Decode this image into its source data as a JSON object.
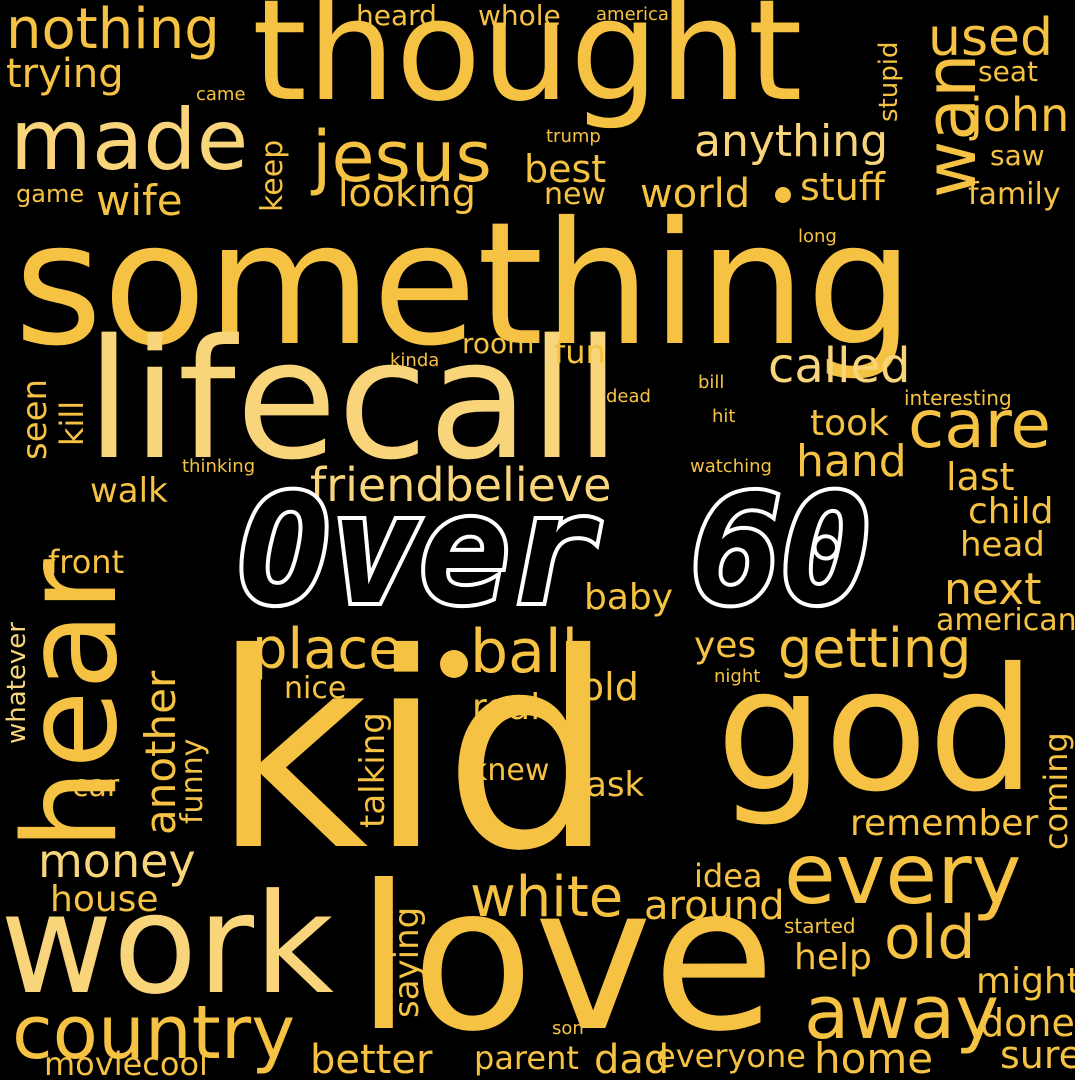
{
  "colors": {
    "background": "#000000",
    "primary": "#f5c243",
    "light": "#f8d57a",
    "title_fill": "#000000",
    "title_stroke": "#ffffff"
  },
  "title": "Over 60",
  "words": [
    {
      "text": "something",
      "tone": "primary"
    },
    {
      "text": "kid",
      "tone": "primary"
    },
    {
      "text": "lifecall",
      "tone": "light"
    },
    {
      "text": "thought",
      "tone": "primary"
    },
    {
      "text": "love",
      "tone": "primary"
    },
    {
      "text": "god",
      "tone": "primary"
    },
    {
      "text": "work",
      "tone": "light"
    },
    {
      "text": "hear",
      "tone": "primary"
    },
    {
      "text": "made",
      "tone": "light"
    },
    {
      "text": "jesus",
      "tone": "primary"
    },
    {
      "text": "every",
      "tone": "primary"
    },
    {
      "text": "country",
      "tone": "primary"
    },
    {
      "text": "away",
      "tone": "primary"
    },
    {
      "text": "care",
      "tone": "primary"
    },
    {
      "text": "wan",
      "tone": "primary"
    },
    {
      "text": "nothing",
      "tone": "primary"
    },
    {
      "text": "used",
      "tone": "primary"
    },
    {
      "text": "john",
      "tone": "primary"
    },
    {
      "text": "trying",
      "tone": "primary"
    },
    {
      "text": "anything",
      "tone": "light"
    },
    {
      "text": "called",
      "tone": "light"
    },
    {
      "text": "friendbelieve",
      "tone": "light"
    },
    {
      "text": "place",
      "tone": "primary"
    },
    {
      "text": "ball",
      "tone": "primary"
    },
    {
      "text": "getting",
      "tone": "primary"
    },
    {
      "text": "white",
      "tone": "primary"
    },
    {
      "text": "money",
      "tone": "light"
    },
    {
      "text": "old",
      "tone": "primary"
    },
    {
      "text": "another",
      "tone": "primary"
    },
    {
      "text": "world",
      "tone": "primary"
    },
    {
      "text": "wife",
      "tone": "primary"
    },
    {
      "text": "stuff",
      "tone": "primary"
    },
    {
      "text": "looking",
      "tone": "primary"
    },
    {
      "text": "best",
      "tone": "primary"
    },
    {
      "text": "hand",
      "tone": "primary"
    },
    {
      "text": "next",
      "tone": "primary"
    },
    {
      "text": "last",
      "tone": "primary"
    },
    {
      "text": "took",
      "tone": "primary"
    },
    {
      "text": "room",
      "tone": "primary"
    },
    {
      "text": "fun",
      "tone": "primary"
    },
    {
      "text": "seen",
      "tone": "primary"
    },
    {
      "text": "kill",
      "tone": "primary"
    },
    {
      "text": "walk",
      "tone": "primary"
    },
    {
      "text": "front",
      "tone": "primary"
    },
    {
      "text": "head",
      "tone": "primary"
    },
    {
      "text": "child",
      "tone": "primary"
    },
    {
      "text": "baby",
      "tone": "primary"
    },
    {
      "text": "yes",
      "tone": "primary"
    },
    {
      "text": "told",
      "tone": "primary"
    },
    {
      "text": "real",
      "tone": "primary"
    },
    {
      "text": "nice",
      "tone": "primary"
    },
    {
      "text": "talking",
      "tone": "primary"
    },
    {
      "text": "knew",
      "tone": "primary"
    },
    {
      "text": "ask",
      "tone": "primary"
    },
    {
      "text": "funny",
      "tone": "primary"
    },
    {
      "text": "car",
      "tone": "primary"
    },
    {
      "text": "whatever",
      "tone": "light"
    },
    {
      "text": "remember",
      "tone": "primary"
    },
    {
      "text": "coming",
      "tone": "primary"
    },
    {
      "text": "american",
      "tone": "primary"
    },
    {
      "text": "idea",
      "tone": "primary"
    },
    {
      "text": "around",
      "tone": "primary"
    },
    {
      "text": "house",
      "tone": "primary"
    },
    {
      "text": "saying",
      "tone": "primary"
    },
    {
      "text": "help",
      "tone": "primary"
    },
    {
      "text": "might",
      "tone": "primary"
    },
    {
      "text": "done",
      "tone": "primary"
    },
    {
      "text": "sure",
      "tone": "primary"
    },
    {
      "text": "home",
      "tone": "primary"
    },
    {
      "text": "everyone",
      "tone": "primary"
    },
    {
      "text": "dad",
      "tone": "primary"
    },
    {
      "text": "parent",
      "tone": "primary"
    },
    {
      "text": "better",
      "tone": "primary"
    },
    {
      "text": "moviecool",
      "tone": "primary"
    },
    {
      "text": "son",
      "tone": "primary"
    },
    {
      "text": "started",
      "tone": "primary"
    },
    {
      "text": "heard",
      "tone": "primary"
    },
    {
      "text": "whole",
      "tone": "primary"
    },
    {
      "text": "america",
      "tone": "primary"
    },
    {
      "text": "came",
      "tone": "primary"
    },
    {
      "text": "trump",
      "tone": "primary"
    },
    {
      "text": "game",
      "tone": "primary"
    },
    {
      "text": "new",
      "tone": "primary"
    },
    {
      "text": "keep",
      "tone": "primary"
    },
    {
      "text": "stupid",
      "tone": "primary"
    },
    {
      "text": "seat",
      "tone": "primary"
    },
    {
      "text": "saw",
      "tone": "primary"
    },
    {
      "text": "family",
      "tone": "primary"
    },
    {
      "text": "long",
      "tone": "primary"
    },
    {
      "text": "kinda",
      "tone": "primary"
    },
    {
      "text": "dead",
      "tone": "primary"
    },
    {
      "text": "bill",
      "tone": "primary"
    },
    {
      "text": "hit",
      "tone": "primary"
    },
    {
      "text": "interesting",
      "tone": "primary"
    },
    {
      "text": "thinking",
      "tone": "primary"
    },
    {
      "text": "watching",
      "tone": "primary"
    },
    {
      "text": "night",
      "tone": "primary"
    }
  ]
}
